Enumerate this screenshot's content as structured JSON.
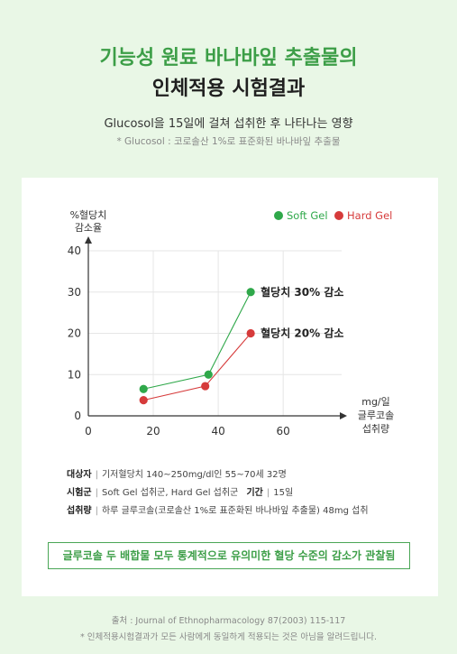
{
  "header": {
    "title_line1": "기능성 원료 바나바잎 추출물의",
    "title_line2": "인체적용 시험결과",
    "subtitle": "Glucosol을 15일에 걸쳐 섭취한 후 나타나는 영향",
    "note": "* Glucosol : 코로솔산 1%로 표준화된 바나바잎 추출물"
  },
  "chart_data": {
    "type": "line",
    "ylabel_line1": "%혈당치",
    "ylabel_line2": "감소율",
    "xlabel_line1": "mg/일",
    "xlabel_line2": "글루코솔",
    "xlabel_line3": "섭취량",
    "xlim": [
      0,
      78
    ],
    "ylim": [
      0,
      40
    ],
    "x_ticks": [
      "0",
      "20",
      "40",
      "60"
    ],
    "y_ticks": [
      "0",
      "10",
      "20",
      "30",
      "40"
    ],
    "x_tick_values": [
      0,
      20,
      40,
      60
    ],
    "y_tick_values": [
      0,
      10,
      20,
      30,
      40
    ],
    "grid": true,
    "legend_position": "top-right",
    "series": [
      {
        "name": "Soft Gel",
        "color": "#2fa84a",
        "x": [
          17,
          37,
          50
        ],
        "y": [
          6.5,
          10,
          30
        ]
      },
      {
        "name": "Hard Gel",
        "color": "#d63b3b",
        "x": [
          17,
          36,
          50
        ],
        "y": [
          3.8,
          7.2,
          20
        ]
      }
    ],
    "annotations": [
      {
        "text": "혈당치 30% 감소",
        "x": 50,
        "y": 30
      },
      {
        "text": "혈당치 20% 감소",
        "x": 50,
        "y": 20
      }
    ]
  },
  "study": {
    "subjects_label": "대상자",
    "subjects_value": "기저혈당치 140~250mg/dl인 55~70세 32명",
    "groups_label": "시험군",
    "groups_value": "Soft Gel 섭취군, Hard Gel 섭취군",
    "period_label": "기간",
    "period_value": "15일",
    "dose_label": "섭취량",
    "dose_value": "하루 글루코솔(코로솔산 1%로 표준화된 바나바잎 추출물) 48mg 섭취",
    "divider": "|"
  },
  "result": "글루코솔 두 배합물 모두 통계적으로 유의미한 혈당 수준의 감소가 관찰됨",
  "footer": {
    "source": "출처 : Journal of Ethnopharmacology 87(2003) 115-117",
    "disclaimer": "* 인체적용시험결과가 모든 사람에게 동일하게 적용되는 것은 아님을 알려드립니다."
  }
}
